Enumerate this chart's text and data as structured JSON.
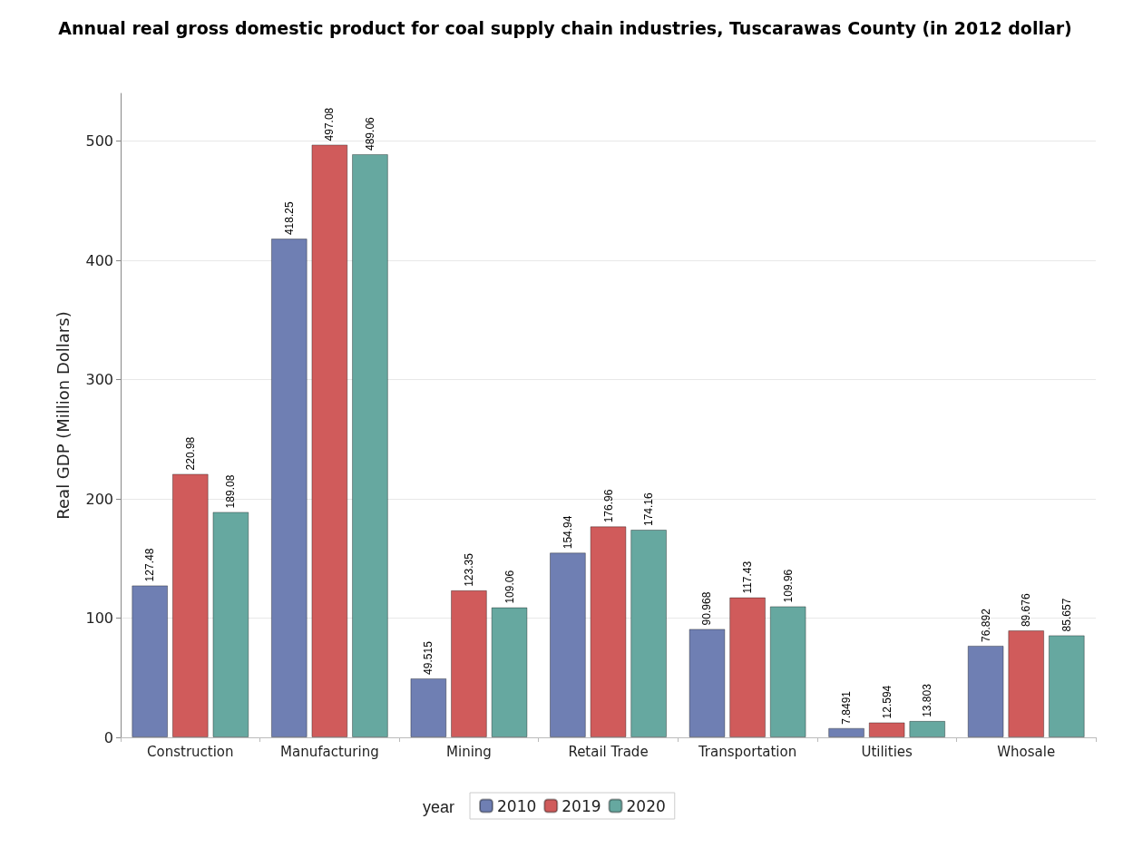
{
  "chart_data": {
    "type": "bar",
    "title": "Annual real gross domestic product for coal supply chain industries, Tuscarawas County (in 2012 dollar)",
    "ylabel": "Real GDP (Million Dollars)",
    "legend_title": "year",
    "categories": [
      "Construction",
      "Manufacturing",
      "Mining",
      "Retail Trade",
      "Transportation",
      "Utilities",
      "Whosale"
    ],
    "series": [
      {
        "name": "2010",
        "color": "#6f7fb3",
        "values": [
          127.48,
          418.25,
          49.515,
          154.94,
          90.968,
          7.8491,
          76.892
        ]
      },
      {
        "name": "2019",
        "color": "#d05b5b",
        "values": [
          220.98,
          497.08,
          123.35,
          176.96,
          117.43,
          12.594,
          89.676
        ]
      },
      {
        "name": "2020",
        "color": "#66a8a0",
        "values": [
          189.08,
          489.06,
          109.06,
          174.16,
          109.96,
          13.803,
          85.657
        ]
      }
    ],
    "ylim": [
      0,
      540
    ],
    "yticks": [
      0,
      100,
      200,
      300,
      400,
      500
    ],
    "grid": "y",
    "legend": "bottom",
    "data_labels": true
  }
}
